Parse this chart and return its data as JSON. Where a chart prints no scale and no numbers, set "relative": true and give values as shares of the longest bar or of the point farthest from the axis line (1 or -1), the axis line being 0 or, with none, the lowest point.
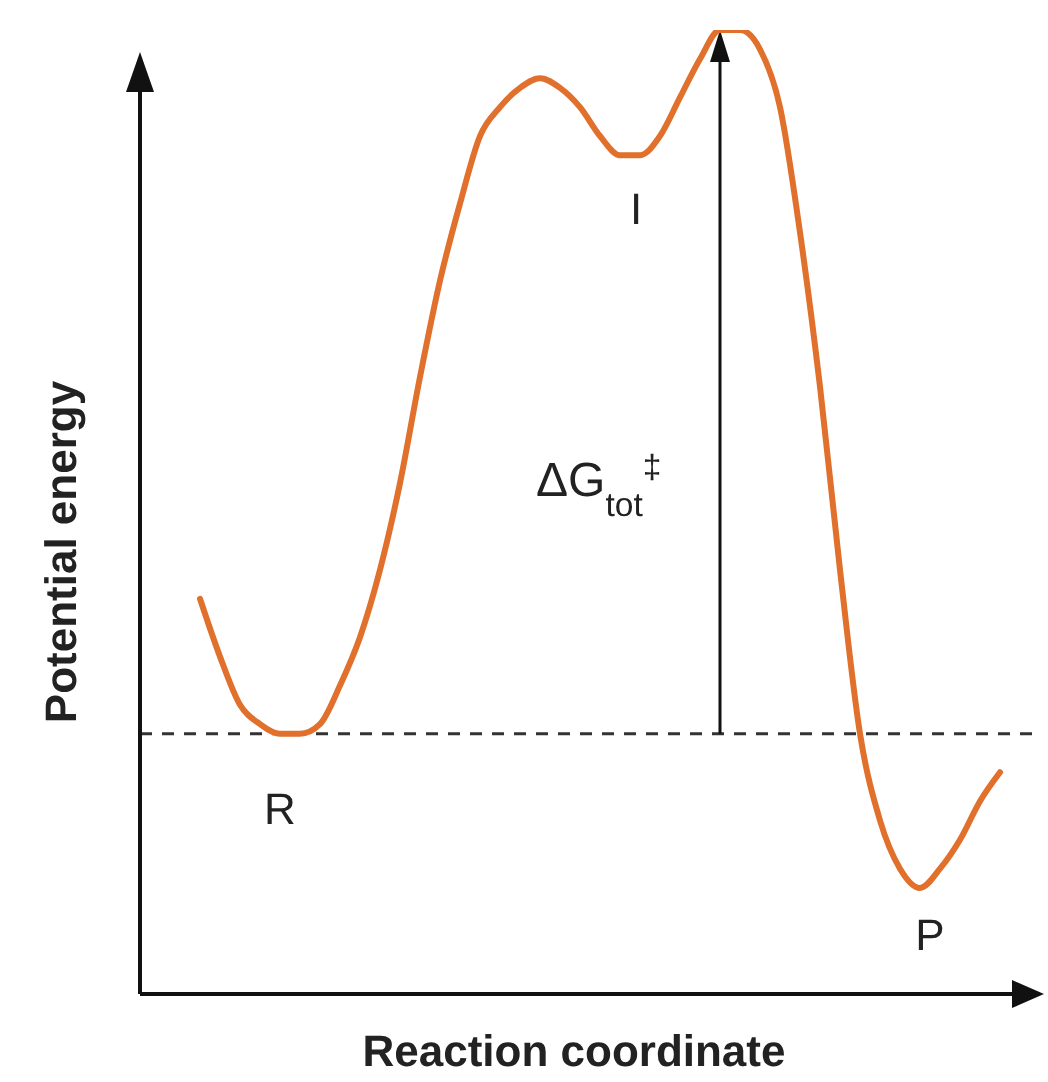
{
  "chart_data": {
    "type": "line",
    "xlabel": "Reaction coordinate",
    "ylabel": "Potential energy",
    "relative": true,
    "marker": "none",
    "line_style": "solid",
    "color": "#e0702c",
    "categories": [
      null,
      null,
      null,
      null,
      null,
      null,
      null,
      null,
      null,
      null,
      null,
      null,
      null,
      null,
      null,
      null,
      null,
      null,
      null,
      null,
      null,
      null,
      null,
      null,
      null,
      null,
      null,
      null,
      null,
      null,
      null,
      null,
      null,
      null,
      null,
      null,
      null,
      null,
      null,
      null,
      null
    ],
    "values": [
      0.41,
      0.35,
      0.3,
      0.28,
      0.27,
      0.27,
      0.28,
      0.32,
      0.37,
      0.44,
      0.53,
      0.64,
      0.74,
      0.82,
      0.89,
      0.92,
      0.94,
      0.95,
      0.94,
      0.92,
      0.89,
      0.87,
      0.87,
      0.89,
      0.93,
      0.97,
      1.0,
      1.0,
      0.98,
      0.92,
      0.79,
      0.63,
      0.44,
      0.27,
      0.18,
      0.13,
      0.11,
      0.13,
      0.16,
      0.2,
      0.23
    ],
    "ref_lines": [
      {
        "axis": "y",
        "value": 0.27,
        "color": "#333333",
        "line_style": "dashed"
      }
    ],
    "annotations": [
      "ΔG$_{tot}$$^{‡}$",
      "R",
      "I",
      "P"
    ]
  }
}
